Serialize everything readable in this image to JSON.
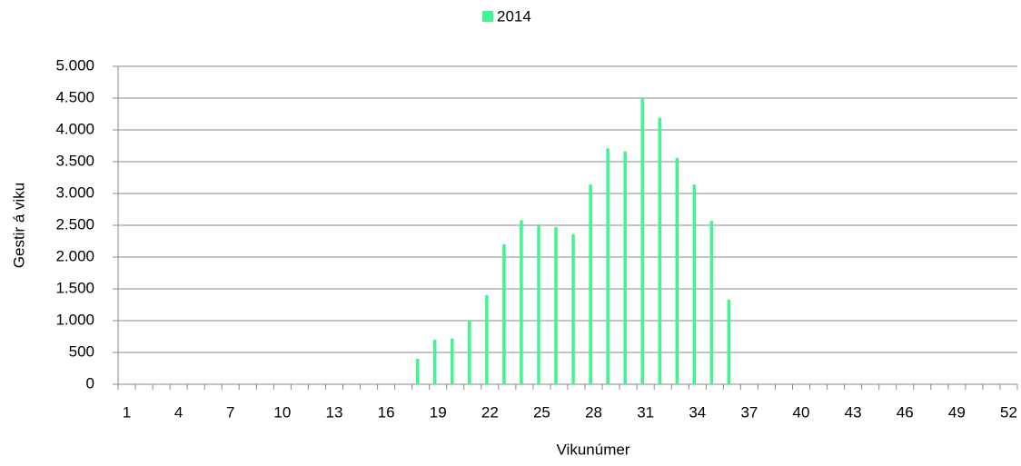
{
  "chart_data": {
    "type": "bar",
    "x_label": "Vikunúmer",
    "y_label": "Gestir á viku",
    "categories": [
      "1",
      null,
      null,
      "4",
      null,
      null,
      "7",
      null,
      null,
      "10",
      null,
      null,
      "13",
      null,
      null,
      "16",
      null,
      null,
      "19",
      null,
      null,
      "22",
      null,
      null,
      "25",
      null,
      null,
      "28",
      null,
      null,
      "31",
      null,
      null,
      "34",
      null,
      null,
      "37",
      null,
      null,
      "40",
      null,
      null,
      "43",
      null,
      null,
      "46",
      null,
      null,
      "49",
      null,
      null,
      "52"
    ],
    "series": [
      {
        "name": "2014",
        "color": "#3ff591",
        "values": [
          0,
          0,
          0,
          0,
          0,
          0,
          0,
          0,
          0,
          0,
          0,
          0,
          0,
          0,
          0,
          0,
          0,
          400,
          700,
          720,
          1000,
          1400,
          2200,
          2580,
          2500,
          2470,
          2360,
          3140,
          3710,
          3660,
          4500,
          4190,
          3560,
          3140,
          2570,
          1330,
          0,
          0,
          0,
          0,
          0,
          0,
          0,
          0,
          0,
          0,
          0,
          0,
          0,
          0,
          0,
          0
        ]
      }
    ],
    "ylim": [
      0,
      5000
    ],
    "yticks": [
      0,
      500,
      {
        "value": 1000,
        "label": "1.000"
      },
      {
        "value": 1500,
        "label": "1.500"
      },
      {
        "value": 2000,
        "label": "2.000"
      },
      {
        "value": 2500,
        "label": "2.500"
      },
      {
        "value": 3000,
        "label": "3.000"
      },
      {
        "value": 3500,
        "label": "3.500"
      },
      {
        "value": 4000,
        "label": "4.000"
      },
      {
        "value": 4500,
        "label": "4.500"
      },
      {
        "value": 5000,
        "label": "5.000"
      }
    ],
    "grid": true,
    "legend": "top"
  }
}
